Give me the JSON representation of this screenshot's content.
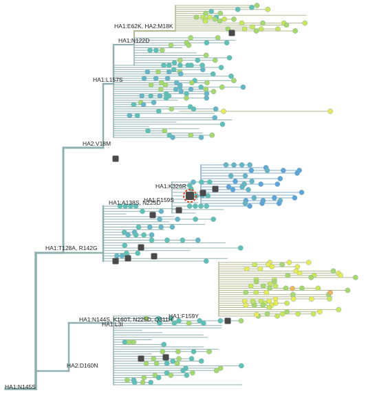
{
  "tree": {
    "mutation_labels": [
      {
        "id": "ha1-e62k-ha2-m18k",
        "text": "HA1:E62K, HA2:M18K"
      },
      {
        "id": "ha1-n122d",
        "text": "HA1:N122D"
      },
      {
        "id": "ha1-l157s",
        "text": "HA1:L157S"
      },
      {
        "id": "ha2-v18m",
        "text": "HA2:V18M"
      },
      {
        "id": "ha1-k326r",
        "text": "HA1:K326R"
      },
      {
        "id": "ha1-f159s",
        "text": "HA1:F159S"
      },
      {
        "id": "ha1-a138s-n225d",
        "text": "HA1:A138S, N225D"
      },
      {
        "id": "ha1-t128a-r142g",
        "text": "HA1:T128A, R142G"
      },
      {
        "id": "ha1-f159y",
        "text": "HA1:F159Y"
      },
      {
        "id": "ha1-n144s-k160t-n225d-q311h",
        "text": "HA1:N144S, K160T, N225D, Q311H"
      },
      {
        "id": "ha1-l3i",
        "text": "HA1:L3I"
      },
      {
        "id": "ha2-d160n",
        "text": "HA2:D160N"
      },
      {
        "id": "ha1-n145s",
        "text": "HA1:N145S"
      }
    ],
    "colors": {
      "branch_teal": "#8fb0b0",
      "branch_olive": "#b4b890",
      "branch_blue": "#7fa9c9",
      "tip_green": "#a6d96a",
      "tip_lime": "#c8e85a",
      "tip_teal": "#5cc1b6",
      "tip_cyan": "#62b6c7",
      "tip_blue": "#5aa6dc",
      "tip_yellow": "#e8ec52",
      "tip_orange": "#f2b35a",
      "vaccine_square": "#4a4a4a",
      "highlight": "#e8411f"
    }
  }
}
